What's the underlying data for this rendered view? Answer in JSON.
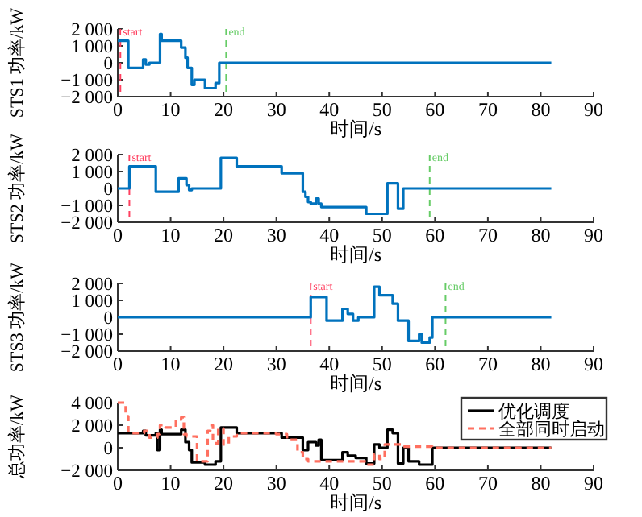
{
  "chart_data": [
    {
      "type": "step",
      "xlabel": "时间/s",
      "ylabel": "STS1 功率/kW",
      "xlim": [
        0,
        90
      ],
      "ylim": [
        -2000,
        2000
      ],
      "xticks": [
        0,
        10,
        20,
        30,
        40,
        50,
        60,
        70,
        80,
        90
      ],
      "yticks": [
        {
          "value": -2000,
          "label": "−2 000"
        },
        {
          "value": -1000,
          "label": "−1 000"
        },
        {
          "value": 0,
          "label": "0"
        },
        {
          "value": 1000,
          "label": "1 000"
        },
        {
          "value": 2000,
          "label": "2 000"
        }
      ],
      "grid": false,
      "legend": false,
      "series": [
        {
          "color": "#0072bd",
          "x": [
            0,
            2,
            4.8,
            5.3,
            6,
            8,
            8.3,
            12,
            12.8,
            13.2,
            14,
            14.5,
            16.5,
            18.5,
            19.2,
            82
          ],
          "values": [
            1300,
            -300,
            200,
            -100,
            0,
            1700,
            1300,
            900,
            300,
            -300,
            -1300,
            -1000,
            -1500,
            -1200,
            0,
            0
          ]
        }
      ],
      "ref_lines": [
        {
          "axis": "x",
          "value": 0.5,
          "label": "start",
          "color": "#ff4060",
          "line_style": "dashed"
        },
        {
          "axis": "x",
          "value": 20.5,
          "label": "end",
          "color": "#66cc66",
          "line_style": "dashed"
        }
      ]
    },
    {
      "type": "step",
      "xlabel": "时间/s",
      "ylabel": "STS2 功率/kW",
      "xlim": [
        0,
        90
      ],
      "ylim": [
        -2000,
        2000
      ],
      "xticks": [
        0,
        10,
        20,
        30,
        40,
        50,
        60,
        70,
        80,
        90
      ],
      "yticks": [
        {
          "value": -2000,
          "label": "−2 000"
        },
        {
          "value": -1000,
          "label": "−1 000"
        },
        {
          "value": 0,
          "label": "0"
        },
        {
          "value": 1000,
          "label": "1 000"
        },
        {
          "value": 2000,
          "label": "2 000"
        }
      ],
      "grid": false,
      "legend": false,
      "series": [
        {
          "color": "#0072bd",
          "x": [
            0,
            2.2,
            7.2,
            11.5,
            13,
            13.5,
            14,
            19.5,
            22.5,
            31,
            35,
            35.5,
            36,
            36.5,
            37.5,
            38,
            38.5,
            47,
            51,
            53,
            54,
            82
          ],
          "values": [
            0,
            1300,
            -200,
            600,
            200,
            -100,
            0,
            1800,
            1300,
            900,
            -200,
            -500,
            -800,
            -900,
            -600,
            -900,
            -1100,
            -1500,
            300,
            -1200,
            0,
            0
          ]
        }
      ],
      "ref_lines": [
        {
          "axis": "x",
          "value": 2.2,
          "label": "start",
          "color": "#ff4060",
          "line_style": "dashed"
        },
        {
          "axis": "x",
          "value": 59,
          "label": "end",
          "color": "#66cc66",
          "line_style": "dashed"
        }
      ]
    },
    {
      "type": "step",
      "xlabel": "时间/s",
      "ylabel": "STS3 功率/kW",
      "xlim": [
        0,
        90
      ],
      "ylim": [
        -2000,
        2000
      ],
      "xticks": [
        0,
        10,
        20,
        30,
        40,
        50,
        60,
        70,
        80,
        90
      ],
      "yticks": [
        {
          "value": -2000,
          "label": "−2 000"
        },
        {
          "value": -1000,
          "label": "−1 000"
        },
        {
          "value": 0,
          "label": "0"
        },
        {
          "value": 1000,
          "label": "1 000"
        },
        {
          "value": 2000,
          "label": "2 000"
        }
      ],
      "grid": false,
      "legend": false,
      "series": [
        {
          "color": "#0072bd",
          "x": [
            0,
            36.5,
            39.5,
            42.5,
            43.5,
            44.5,
            45.5,
            48.5,
            49.5,
            52,
            53,
            55,
            57,
            57.5,
            59,
            59.5,
            82
          ],
          "values": [
            0,
            1200,
            -200,
            500,
            200,
            -200,
            0,
            1800,
            1300,
            800,
            -200,
            -1400,
            -1000,
            -1500,
            -1200,
            0,
            0
          ]
        }
      ],
      "ref_lines": [
        {
          "axis": "x",
          "value": 36.5,
          "label": "start",
          "color": "#ff4060",
          "line_style": "dashed"
        },
        {
          "axis": "x",
          "value": 62,
          "label": "end",
          "color": "#66cc66",
          "line_style": "dashed"
        }
      ]
    },
    {
      "type": "step",
      "xlabel": "时间/s",
      "ylabel": "总功率/kW",
      "xlim": [
        0,
        90
      ],
      "ylim": [
        -2000,
        4000
      ],
      "xticks": [
        0,
        10,
        20,
        30,
        40,
        50,
        60,
        70,
        80,
        90
      ],
      "yticks": [
        {
          "value": -2000,
          "label": "−2 000"
        },
        {
          "value": 0,
          "label": "0"
        },
        {
          "value": 2000,
          "label": "2 000"
        },
        {
          "value": 4000,
          "label": "4 000"
        }
      ],
      "grid": false,
      "legend": "top right",
      "series": [
        {
          "name": "优化调度",
          "color": "#000000",
          "line_style": "solid",
          "x": [
            0,
            4.8,
            5.3,
            7.2,
            7.5,
            8,
            8.3,
            12,
            12.8,
            13.5,
            14,
            16.5,
            18.5,
            19.5,
            22.5,
            31,
            35,
            36,
            37.5,
            38,
            38.5,
            42.5,
            43.5,
            45,
            47,
            48.5,
            49.5,
            51,
            52,
            53,
            54,
            55,
            57,
            59.5,
            82
          ],
          "values": [
            1300,
            1500,
            1100,
            1300,
            -200,
            1600,
            1200,
            1600,
            500,
            -200,
            -1300,
            -1500,
            -1200,
            1800,
            1300,
            900,
            -200,
            500,
            200,
            700,
            -1100,
            -400,
            -700,
            -900,
            -1400,
            300,
            0,
            1600,
            1300,
            -1400,
            0,
            -1200,
            -1500,
            0,
            0
          ]
        },
        {
          "name": "全部同时启动",
          "color": "#ff7060",
          "line_style": "dashed",
          "x": [
            0,
            1.5,
            2,
            5,
            6,
            7.5,
            8,
            9,
            11,
            12,
            12.5,
            13,
            15,
            17,
            17.5,
            18,
            19,
            20,
            21,
            22.5,
            26,
            30,
            32,
            34,
            35,
            36,
            47,
            48.5,
            49.5,
            50.5,
            54,
            59.5,
            82
          ],
          "values": [
            4000,
            2800,
            1300,
            1500,
            900,
            1200,
            2000,
            1800,
            2500,
            2700,
            1200,
            1000,
            -1200,
            1500,
            2000,
            400,
            1700,
            300,
            1000,
            1300,
            1300,
            1200,
            700,
            -400,
            -1000,
            -1200,
            -1500,
            -600,
            -1000,
            300,
            100,
            0,
            0
          ]
        }
      ]
    }
  ]
}
